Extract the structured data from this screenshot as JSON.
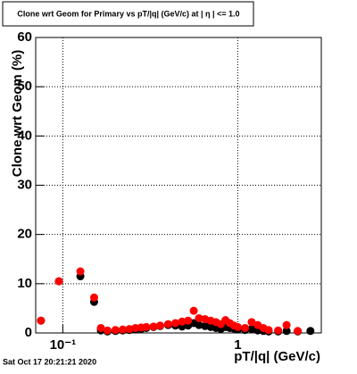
{
  "chart_data": {
    "type": "scatter",
    "title": "Clone wrt Geom for Primary vs pT/|q| (GeV/c) at | η | <= 1.0",
    "x_label": "pT/|q| (GeV/c)",
    "y_label": "Clone wrt Geom (%)",
    "footer": "Sat Oct 17 20:21:21 2020",
    "x": [
      0.075,
      0.095,
      0.126,
      0.151,
      0.165,
      0.18,
      0.2,
      0.22,
      0.24,
      0.26,
      0.28,
      0.3,
      0.33,
      0.36,
      0.4,
      0.44,
      0.48,
      0.52,
      0.56,
      0.6,
      0.65,
      0.7,
      0.75,
      0.8,
      0.85,
      0.9,
      0.95,
      1.0,
      1.1,
      1.2,
      1.3,
      1.4,
      1.5,
      1.7,
      1.9,
      2.2,
      2.6
    ],
    "series": [
      {
        "color": "#000000",
        "values": [
          2.5,
          10.5,
          11.5,
          6.3,
          0.5,
          0.3,
          0.4,
          0.5,
          0.6,
          0.7,
          0.8,
          1.0,
          1.2,
          1.4,
          1.6,
          1.5,
          1.3,
          1.5,
          2.0,
          1.6,
          1.4,
          1.2,
          1.0,
          0.8,
          1.2,
          1.0,
          0.9,
          0.7,
          0.6,
          0.8,
          0.5,
          0.4,
          0.3,
          0.3,
          0.4,
          0.3,
          0.4
        ]
      },
      {
        "color": "#ff0000",
        "values": [
          2.5,
          10.5,
          12.5,
          7.2,
          1.0,
          0.5,
          0.6,
          0.7,
          0.8,
          1.0,
          1.1,
          1.2,
          1.3,
          1.5,
          1.8,
          2.0,
          2.3,
          2.5,
          4.5,
          3.0,
          2.8,
          2.5,
          2.2,
          1.8,
          2.6,
          2.0,
          1.5,
          1.2,
          1.0,
          2.2,
          1.6,
          1.0,
          0.6,
          0.5,
          1.6,
          0.4,
          null
        ]
      }
    ],
    "xlim": [
      0.07,
      3
    ],
    "xscale": "log",
    "xticks": [
      {
        "value": 0.1,
        "label": "10⁻¹"
      },
      1
    ],
    "ylim": [
      0,
      60
    ],
    "yticks": [
      0,
      10,
      20,
      30,
      40,
      50,
      60
    ],
    "grid": true
  }
}
